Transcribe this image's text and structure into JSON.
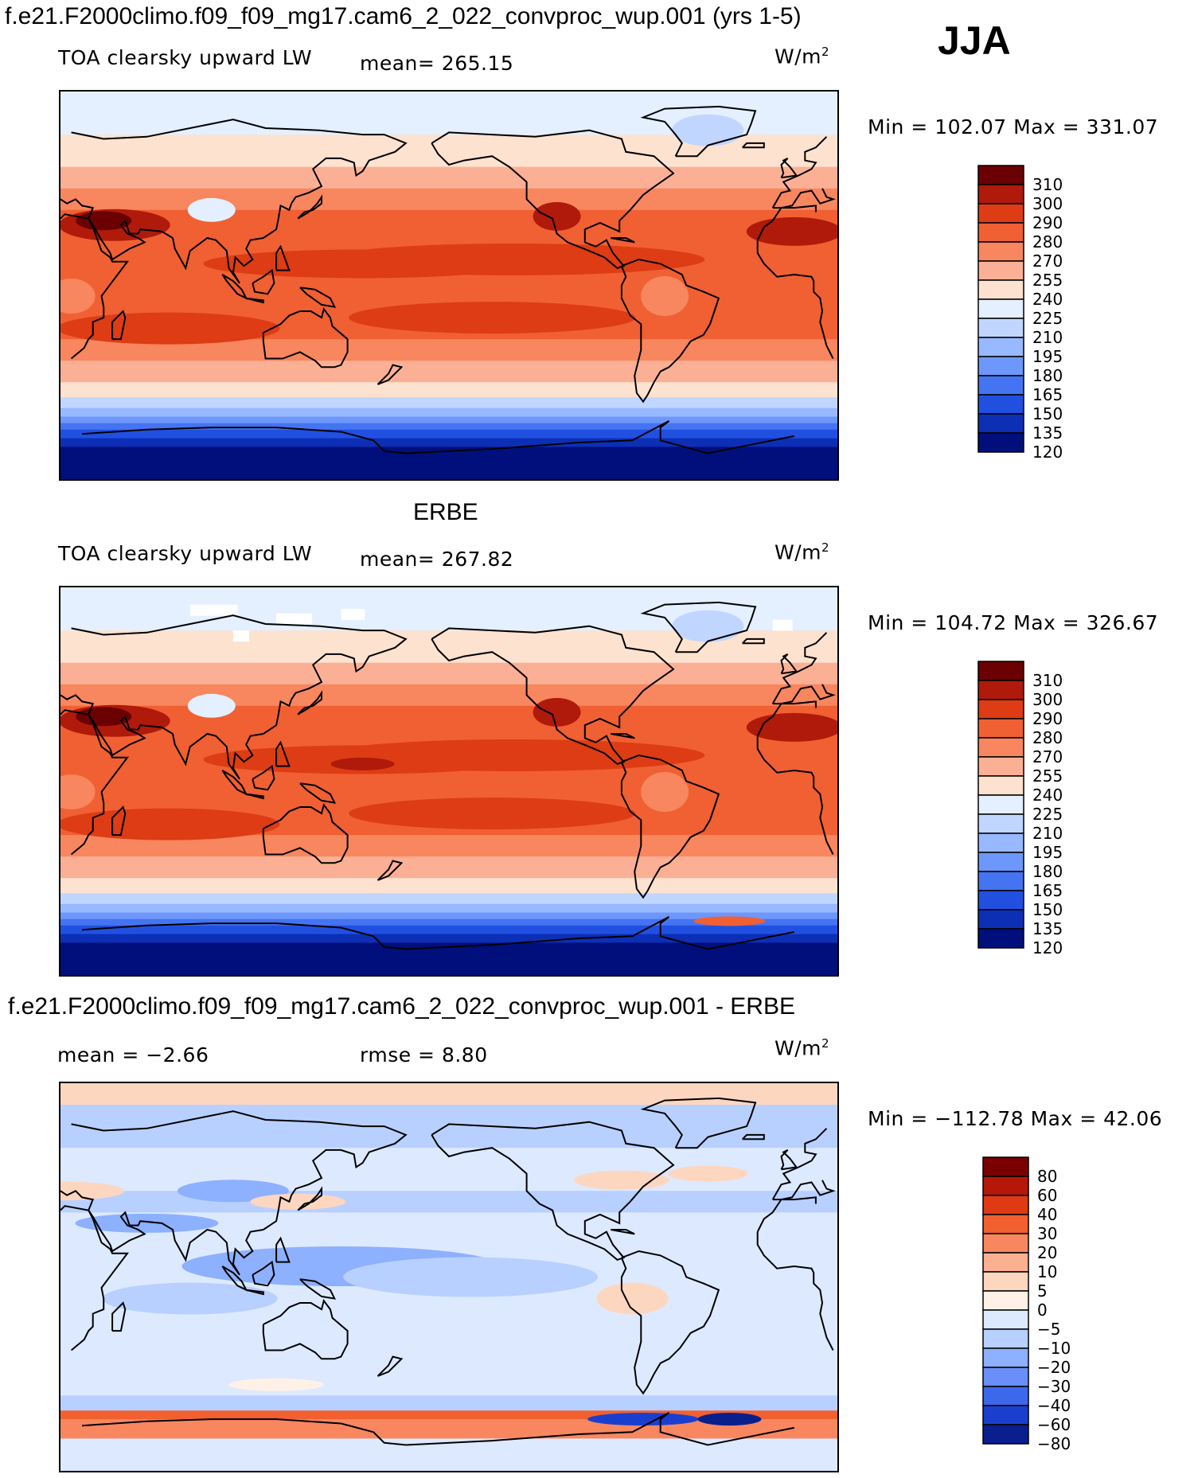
{
  "season": "JJA",
  "panels": [
    {
      "title": "f.e21.F2000climo.f09_f09_mg17.cam6_2_022_convproc_wup.001 (yrs 1-5)",
      "variable": "TOA clearsky upward LW",
      "mean_label": "mean= 265.15",
      "units": "W/m",
      "units_exp": "2",
      "minmax": "Min = 102.07 Max = 331.07"
    },
    {
      "title": "ERBE",
      "variable": "TOA clearsky upward LW",
      "mean_label": "mean= 267.82",
      "units": "W/m",
      "units_exp": "2",
      "minmax": "Min = 104.72 Max = 326.67"
    },
    {
      "title": "f.e21.F2000climo.f09_f09_mg17.cam6_2_022_convproc_wup.001 - ERBE",
      "mean_label": "mean =   −2.66",
      "rmse_label": "rmse =    8.80",
      "units": "W/m",
      "units_exp": "2",
      "minmax": "Min = −112.78 Max =  42.06"
    }
  ],
  "chart_data": [
    {
      "type": "heatmap",
      "title": "f.e21.F2000climo.f09_f09_mg17.cam6_2_022_convproc_wup.001 (yrs 1-5)",
      "variable": "TOA clearsky upward LW",
      "units": "W/m^2",
      "mean": 265.15,
      "min": 102.07,
      "max": 331.07,
      "colorbar_levels": [
        "310",
        "300",
        "290",
        "280",
        "270",
        "255",
        "240",
        "225",
        "210",
        "195",
        "180",
        "165",
        "150",
        "135",
        "120"
      ],
      "colorbar_colors": [
        "#6b0003",
        "#b01a0a",
        "#de3c14",
        "#f06032",
        "#f8865e",
        "#fbb095",
        "#fde2cf",
        "#e4efff",
        "#c1d6ff",
        "#98b8ff",
        "#6e97fb",
        "#4574f2",
        "#2150e1",
        "#0c2fb5",
        "#000f7c"
      ]
    },
    {
      "type": "heatmap",
      "title": "ERBE",
      "variable": "TOA clearsky upward LW",
      "units": "W/m^2",
      "mean": 267.82,
      "min": 104.72,
      "max": 326.67,
      "colorbar_levels": [
        "310",
        "300",
        "290",
        "280",
        "270",
        "255",
        "240",
        "225",
        "210",
        "195",
        "180",
        "165",
        "150",
        "135",
        "120"
      ],
      "colorbar_colors": [
        "#6b0003",
        "#b01a0a",
        "#de3c14",
        "#f06032",
        "#f8865e",
        "#fbb095",
        "#fde2cf",
        "#e4efff",
        "#c1d6ff",
        "#98b8ff",
        "#6e97fb",
        "#4574f2",
        "#2150e1",
        "#0c2fb5",
        "#000f7c"
      ]
    },
    {
      "type": "heatmap",
      "title": "f.e21.F2000climo.f09_f09_mg17.cam6_2_022_convproc_wup.001 - ERBE",
      "units": "W/m^2",
      "mean": -2.66,
      "rmse": 8.8,
      "min": -112.78,
      "max": 42.06,
      "colorbar_levels": [
        "80",
        "60",
        "40",
        "30",
        "20",
        "10",
        "5",
        "0",
        "−5",
        "−10",
        "−20",
        "−30",
        "−40",
        "−60",
        "−80"
      ],
      "colorbar_colors": [
        "#7a0000",
        "#b51808",
        "#e03a14",
        "#f2602f",
        "#f8875f",
        "#fbb092",
        "#fdd6c0",
        "#fff1e6",
        "#dde9ff",
        "#b8d0ff",
        "#8db0ff",
        "#6a8ff8",
        "#3c68ec",
        "#1a3fcf",
        "#0a1f8e"
      ]
    }
  ]
}
